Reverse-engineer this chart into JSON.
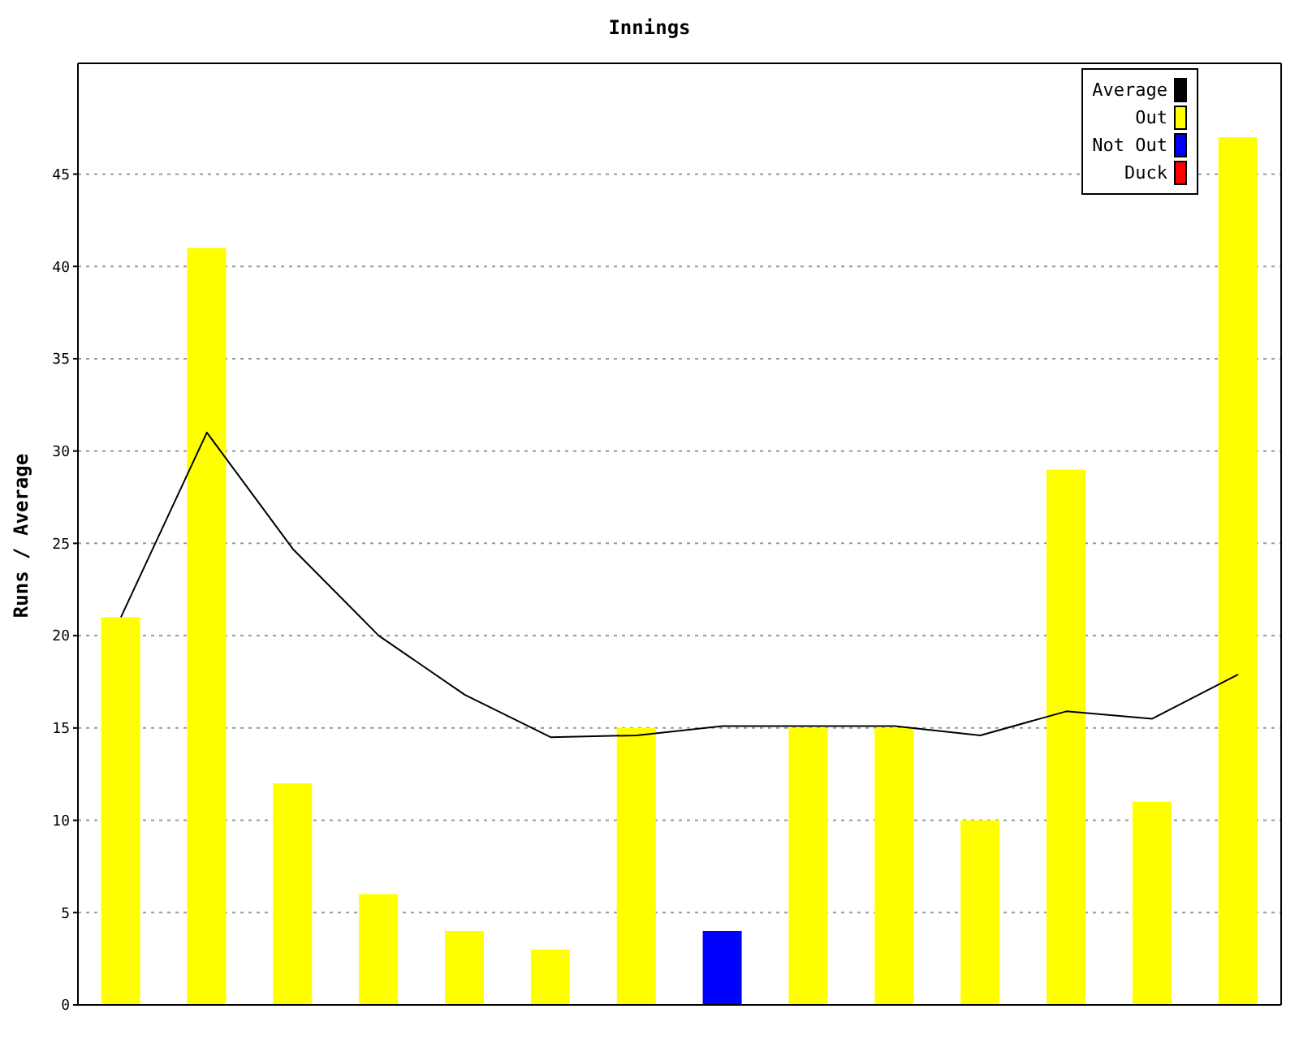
{
  "chart_data": {
    "type": "bar",
    "title": "Innings",
    "ylabel": "Runs / Average",
    "categories": [
      null,
      null,
      null,
      null,
      null,
      null,
      null,
      null,
      null,
      null,
      null,
      null,
      null,
      null
    ],
    "series": [
      {
        "name": "Average",
        "type": "line",
        "color": "#000000",
        "values": [
          21,
          31,
          24.7,
          20,
          16.8,
          14.5,
          14.6,
          15.1,
          15.1,
          15.1,
          14.6,
          15.9,
          15.5,
          17.9
        ]
      },
      {
        "name": "Out",
        "color": "#ffff00",
        "values": [
          21,
          41,
          12,
          6,
          4,
          3,
          15,
          null,
          15,
          15,
          10,
          29,
          11,
          47
        ]
      },
      {
        "name": "Not Out",
        "color": "#0000ff",
        "values": [
          null,
          null,
          null,
          null,
          null,
          null,
          null,
          4,
          null,
          null,
          null,
          null,
          null,
          null
        ]
      },
      {
        "name": "Duck",
        "color": "#ff0000",
        "values": [
          null,
          null,
          null,
          null,
          null,
          null,
          null,
          null,
          null,
          null,
          null,
          null,
          null,
          null
        ]
      }
    ],
    "stacked": true,
    "ylim": [
      0,
      51
    ],
    "yticks": [
      0,
      5,
      10,
      15,
      20,
      25,
      30,
      35,
      40,
      45
    ],
    "grid": "y",
    "legend": "top right",
    "marker": "none",
    "line_style": "solid",
    "tick_labels": "y"
  }
}
